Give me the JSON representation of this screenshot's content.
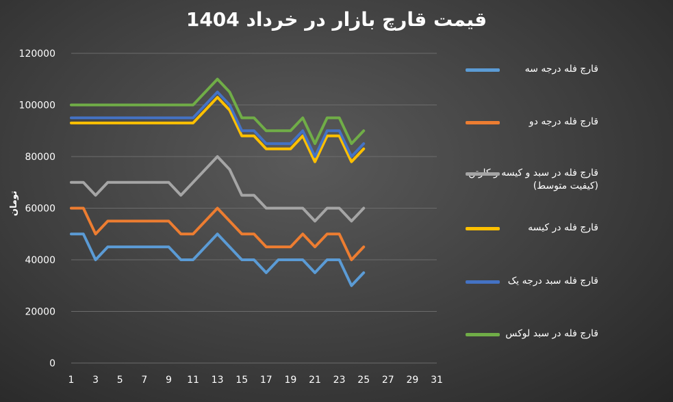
{
  "chart_data": {
    "type": "line",
    "title": "قیمت قارچ بازار در خرداد 1404",
    "ylabel": "تومان",
    "xlabel": "",
    "ylim": [
      0,
      120000
    ],
    "xlim": [
      1,
      31
    ],
    "y_ticks": [
      "0",
      "20000",
      "40000",
      "60000",
      "80000",
      "100000",
      "120000"
    ],
    "x_ticks": [
      "1",
      "3",
      "5",
      "7",
      "9",
      "11",
      "13",
      "15",
      "17",
      "19",
      "21",
      "23",
      "25",
      "27",
      "29",
      "31"
    ],
    "grid": true,
    "legend_position": "right",
    "x": [
      1,
      2,
      3,
      4,
      5,
      6,
      7,
      8,
      9,
      10,
      11,
      12,
      13,
      14,
      15,
      16,
      17,
      18,
      19,
      20,
      21,
      22,
      23,
      24,
      25
    ],
    "series": [
      {
        "name": "قارچ فله درجه سه",
        "color": "#5b9bd5",
        "values": [
          50000,
          50000,
          40000,
          45000,
          45000,
          45000,
          45000,
          45000,
          45000,
          40000,
          40000,
          45000,
          50000,
          45000,
          40000,
          40000,
          35000,
          40000,
          40000,
          40000,
          35000,
          40000,
          40000,
          30000,
          35000
        ]
      },
      {
        "name": "قارچ فله درجه دو",
        "color": "#ed7d31",
        "values": [
          60000,
          60000,
          50000,
          55000,
          55000,
          55000,
          55000,
          55000,
          55000,
          50000,
          50000,
          55000,
          60000,
          55000,
          50000,
          50000,
          45000,
          45000,
          45000,
          50000,
          45000,
          50000,
          50000,
          40000,
          45000
        ]
      },
      {
        "name": "قارچ فله در سبد و کیسه و کارتن (کیفیت متوسط)",
        "color": "#a5a5a5",
        "values": [
          70000,
          70000,
          65000,
          70000,
          70000,
          70000,
          70000,
          70000,
          70000,
          65000,
          70000,
          75000,
          80000,
          75000,
          65000,
          65000,
          60000,
          60000,
          60000,
          60000,
          55000,
          60000,
          60000,
          55000,
          60000
        ]
      },
      {
        "name": "قارچ فله در کیسه",
        "color": "#ffc000",
        "values": [
          93000,
          93000,
          93000,
          93000,
          93000,
          93000,
          93000,
          93000,
          93000,
          93000,
          93000,
          98000,
          103000,
          98000,
          88000,
          88000,
          83000,
          83000,
          83000,
          88000,
          78000,
          88000,
          88000,
          78000,
          83000
        ]
      },
      {
        "name": "قارچ فله سبد درجه یک",
        "color": "#4472c4",
        "values": [
          95000,
          95000,
          95000,
          95000,
          95000,
          95000,
          95000,
          95000,
          95000,
          95000,
          95000,
          100000,
          105000,
          100000,
          90000,
          90000,
          85000,
          85000,
          85000,
          90000,
          80000,
          90000,
          90000,
          80000,
          85000
        ]
      },
      {
        "name": "قارچ فله در سبد لوکس",
        "color": "#70ad47",
        "values": [
          100000,
          100000,
          100000,
          100000,
          100000,
          100000,
          100000,
          100000,
          100000,
          100000,
          100000,
          105000,
          110000,
          105000,
          95000,
          95000,
          90000,
          90000,
          90000,
          95000,
          85000,
          95000,
          95000,
          85000,
          90000
        ]
      }
    ]
  }
}
